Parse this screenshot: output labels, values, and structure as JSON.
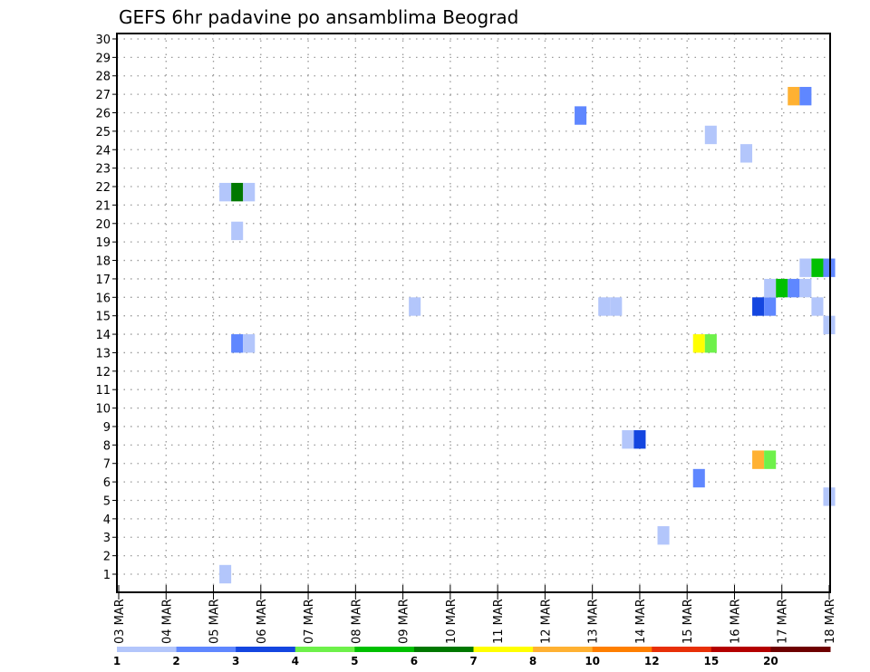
{
  "chart_data": {
    "type": "heatmap",
    "title": "GEFS 6hr padavine po ansamblima Beograd",
    "xlabel": "",
    "ylabel": "",
    "x_unit": "6-hour steps from 03 MAR 00z",
    "x_range": [
      0,
      60
    ],
    "y_range": [
      0.5,
      30
    ],
    "y_ticks": [
      1,
      2,
      3,
      4,
      5,
      6,
      7,
      8,
      9,
      10,
      11,
      12,
      13,
      14,
      15,
      16,
      17,
      18,
      19,
      20,
      21,
      22,
      23,
      24,
      25,
      26,
      27,
      28,
      29,
      30
    ],
    "x_ticks": [
      "03 MAR",
      "04 MAR",
      "05 MAR",
      "06 MAR",
      "07 MAR",
      "08 MAR",
      "09 MAR",
      "10 MAR",
      "11 MAR",
      "12 MAR",
      "13 MAR",
      "14 MAR",
      "15 MAR",
      "16 MAR",
      "17 MAR",
      "18 MAR"
    ],
    "grid": true,
    "legend": {
      "placement": "bottom",
      "levels": [
        "1",
        "2",
        "3",
        "4",
        "5",
        "6",
        "7",
        "8",
        "10",
        "12",
        "15",
        "20"
      ],
      "colors": [
        "#b3c6fb",
        "#5f87ff",
        "#1446e0",
        "#6ef14a",
        "#00c000",
        "#007800",
        "#ffff00",
        "#ffb132",
        "#ff7f00",
        "#e83008",
        "#b40000",
        "#6e0000"
      ]
    },
    "cells": [
      {
        "t": 9,
        "member": 1.0,
        "value": 1.5
      },
      {
        "t": 46,
        "member": 3.1,
        "value": 1.5
      },
      {
        "t": 60,
        "member": 5.2,
        "value": 1.5
      },
      {
        "t": 49,
        "member": 6.2,
        "value": 2.5
      },
      {
        "t": 54,
        "member": 7.2,
        "value": 9
      },
      {
        "t": 55,
        "member": 7.2,
        "value": 4.5
      },
      {
        "t": 43,
        "member": 8.3,
        "value": 1.5
      },
      {
        "t": 44,
        "member": 8.3,
        "value": 3.5
      },
      {
        "t": 10,
        "member": 13.5,
        "value": 2.5
      },
      {
        "t": 11,
        "member": 13.5,
        "value": 1.5
      },
      {
        "t": 49,
        "member": 13.5,
        "value": 7.5
      },
      {
        "t": 50,
        "member": 13.5,
        "value": 4.5
      },
      {
        "t": 60,
        "member": 14.5,
        "value": 1.5
      },
      {
        "t": 25,
        "member": 15.5,
        "value": 1.5
      },
      {
        "t": 41,
        "member": 15.5,
        "value": 1.5
      },
      {
        "t": 42,
        "member": 15.5,
        "value": 1.5
      },
      {
        "t": 54,
        "member": 15.5,
        "value": 3.5
      },
      {
        "t": 55,
        "member": 15.5,
        "value": 2.5
      },
      {
        "t": 59,
        "member": 15.5,
        "value": 1.5
      },
      {
        "t": 55,
        "member": 16.5,
        "value": 1.5
      },
      {
        "t": 56,
        "member": 16.5,
        "value": 5.5
      },
      {
        "t": 57,
        "member": 16.5,
        "value": 2.5
      },
      {
        "t": 58,
        "member": 16.5,
        "value": 1.5
      },
      {
        "t": 58,
        "member": 17.6,
        "value": 1.5
      },
      {
        "t": 59,
        "member": 17.6,
        "value": 5.5
      },
      {
        "t": 60,
        "member": 17.6,
        "value": 2.5
      },
      {
        "t": 10,
        "member": 19.6,
        "value": 1.5
      },
      {
        "t": 9,
        "member": 21.7,
        "value": 1.5
      },
      {
        "t": 10,
        "member": 21.7,
        "value": 6.5
      },
      {
        "t": 11,
        "member": 21.7,
        "value": 1.5
      },
      {
        "t": 53,
        "member": 23.8,
        "value": 1.5
      },
      {
        "t": 50,
        "member": 24.8,
        "value": 1.5
      },
      {
        "t": 39,
        "member": 25.85,
        "value": 2.5
      },
      {
        "t": 57,
        "member": 26.9,
        "value": 9
      },
      {
        "t": 58,
        "member": 26.9,
        "value": 2.5
      }
    ]
  }
}
